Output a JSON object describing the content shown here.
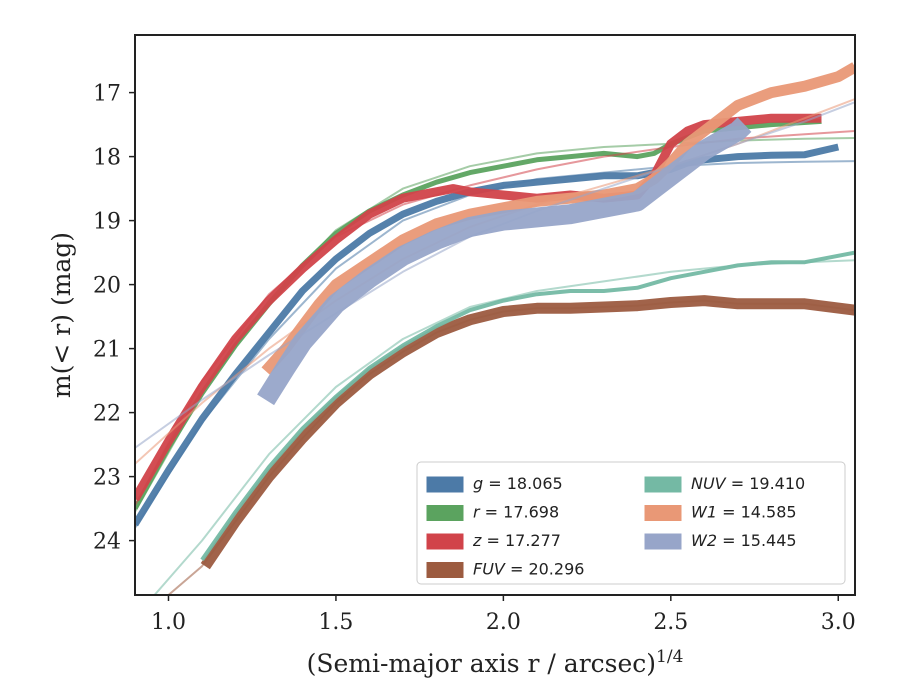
{
  "chart_data": {
    "type": "line",
    "xlabel": "(Semi-major axis r / arcsec)",
    "xlabel_sup": "1/4",
    "ylabel": "m(< r) (mag)",
    "xlim": [
      0.9,
      3.05
    ],
    "ylim": [
      24.85,
      16.1
    ],
    "y_inverted": true,
    "x_ticks": [
      1.0,
      1.5,
      2.0,
      2.5,
      3.0
    ],
    "x_tick_labels": [
      "1.0",
      "1.5",
      "2.0",
      "2.5",
      "3.0"
    ],
    "y_ticks": [
      17,
      18,
      19,
      20,
      21,
      22,
      23,
      24
    ],
    "y_tick_labels": [
      "17",
      "18",
      "19",
      "20",
      "21",
      "22",
      "23",
      "24"
    ],
    "grid": false,
    "legend_position": "lower-right",
    "series": [
      {
        "name": "g = 18.065",
        "label_var": "g",
        "label_value": "18.065",
        "color": "#4c7aa7",
        "band": 7,
        "x": [
          0.9,
          1.0,
          1.1,
          1.2,
          1.3,
          1.4,
          1.5,
          1.6,
          1.7,
          1.8,
          1.9,
          2.0,
          2.1,
          2.2,
          2.3,
          2.4,
          2.45,
          2.5,
          2.55,
          2.6,
          2.7,
          2.8,
          2.9,
          3.0
        ],
        "y": [
          23.75,
          22.9,
          22.1,
          21.4,
          20.75,
          20.1,
          19.6,
          19.2,
          18.9,
          18.7,
          18.55,
          18.45,
          18.4,
          18.35,
          18.3,
          18.3,
          18.25,
          18.2,
          18.1,
          18.05,
          18.0,
          17.98,
          17.97,
          17.85
        ],
        "model_x": [
          0.9,
          1.1,
          1.3,
          1.5,
          1.7,
          1.9,
          2.1,
          2.3,
          2.5,
          2.7,
          2.9,
          3.05
        ],
        "model_y": [
          23.8,
          22.15,
          20.85,
          19.75,
          19.0,
          18.6,
          18.35,
          18.25,
          18.15,
          18.1,
          18.08,
          18.07
        ]
      },
      {
        "name": "r = 17.698",
        "label_var": "r",
        "label_value": "17.698",
        "color": "#5ba35f",
        "band": 5,
        "x": [
          0.9,
          1.0,
          1.1,
          1.2,
          1.3,
          1.4,
          1.5,
          1.6,
          1.7,
          1.8,
          1.9,
          2.0,
          2.1,
          2.2,
          2.3,
          2.4,
          2.45,
          2.5,
          2.6,
          2.7,
          2.8,
          2.95
        ],
        "y": [
          23.5,
          22.55,
          21.7,
          20.95,
          20.3,
          19.7,
          19.2,
          18.85,
          18.6,
          18.4,
          18.25,
          18.15,
          18.05,
          18.0,
          17.95,
          18.0,
          17.95,
          17.8,
          17.6,
          17.55,
          17.5,
          17.45
        ],
        "model_x": [
          0.9,
          1.1,
          1.3,
          1.5,
          1.7,
          1.9,
          2.1,
          2.3,
          2.5,
          2.7,
          2.9,
          3.05
        ],
        "model_y": [
          23.55,
          21.7,
          20.25,
          19.15,
          18.5,
          18.15,
          17.95,
          17.85,
          17.8,
          17.75,
          17.72,
          17.71
        ]
      },
      {
        "name": "z = 17.277",
        "label_var": "z",
        "label_value": "17.277",
        "color": "#d1434a",
        "band": 9,
        "x": [
          0.9,
          1.0,
          1.1,
          1.2,
          1.3,
          1.4,
          1.5,
          1.6,
          1.7,
          1.8,
          1.85,
          1.9,
          2.0,
          2.1,
          2.2,
          2.3,
          2.4,
          2.45,
          2.5,
          2.55,
          2.6,
          2.7,
          2.8,
          2.95
        ],
        "y": [
          23.35,
          22.45,
          21.6,
          20.85,
          20.25,
          19.75,
          19.3,
          18.9,
          18.65,
          18.55,
          18.5,
          18.55,
          18.6,
          18.65,
          18.6,
          18.65,
          18.6,
          18.3,
          17.8,
          17.6,
          17.5,
          17.45,
          17.4,
          17.4
        ],
        "model_x": [
          0.9,
          1.1,
          1.3,
          1.5,
          1.7,
          1.9,
          2.1,
          2.3,
          2.5,
          2.7,
          2.9,
          3.05
        ],
        "model_y": [
          23.45,
          21.5,
          20.15,
          19.25,
          18.75,
          18.45,
          18.2,
          18.0,
          17.85,
          17.72,
          17.65,
          17.6
        ]
      },
      {
        "name": "FUV = 20.296",
        "label_var": "FUV",
        "label_value": "20.296",
        "color": "#9c5b40",
        "band": 11,
        "x": [
          1.11,
          1.2,
          1.3,
          1.4,
          1.5,
          1.6,
          1.7,
          1.8,
          1.9,
          2.0,
          2.1,
          2.2,
          2.3,
          2.4,
          2.5,
          2.6,
          2.7,
          2.8,
          2.9,
          3.05
        ],
        "y": [
          24.4,
          23.7,
          23.0,
          22.4,
          21.85,
          21.4,
          21.05,
          20.75,
          20.55,
          20.42,
          20.37,
          20.37,
          20.35,
          20.33,
          20.28,
          20.25,
          20.3,
          20.3,
          20.3,
          20.4
        ],
        "model_x": [
          0.9,
          1.0,
          1.1,
          1.2,
          1.3,
          1.4,
          1.5,
          1.6,
          1.7,
          1.8,
          1.9,
          2.0,
          2.1,
          2.2,
          2.3,
          2.4,
          2.5,
          2.6,
          2.7,
          2.8,
          2.9,
          3.05
        ],
        "model_y": [
          25.2,
          24.85,
          24.4,
          23.7,
          23.0,
          22.4,
          21.85,
          21.4,
          21.05,
          20.75,
          20.55,
          20.42,
          20.37,
          20.37,
          20.35,
          20.33,
          20.28,
          20.25,
          20.3,
          20.3,
          20.3,
          20.4
        ]
      },
      {
        "name": "NUV = 19.410",
        "label_var": "NUV",
        "label_value": "19.410",
        "color": "#74b9a4",
        "band": 4,
        "x": [
          1.1,
          1.2,
          1.3,
          1.4,
          1.5,
          1.6,
          1.7,
          1.8,
          1.9,
          2.0,
          2.1,
          2.2,
          2.3,
          2.4,
          2.5,
          2.6,
          2.7,
          2.8,
          2.9,
          3.05
        ],
        "y": [
          24.3,
          23.55,
          22.85,
          22.25,
          21.75,
          21.3,
          20.95,
          20.65,
          20.4,
          20.25,
          20.15,
          20.1,
          20.1,
          20.05,
          19.9,
          19.8,
          19.7,
          19.65,
          19.65,
          19.5
        ],
        "model_x": [
          0.9,
          1.1,
          1.3,
          1.5,
          1.7,
          1.9,
          2.1,
          2.3,
          2.5,
          2.7,
          2.9,
          3.05
        ],
        "model_y": [
          25.2,
          24.0,
          22.65,
          21.6,
          20.85,
          20.35,
          20.1,
          19.95,
          19.8,
          19.7,
          19.65,
          19.62
        ]
      },
      {
        "name": "W1 = 14.585",
        "label_var": "W1",
        "label_value": "14.585",
        "color": "#e99876",
        "band": 11,
        "x": [
          1.29,
          1.35,
          1.4,
          1.45,
          1.5,
          1.6,
          1.7,
          1.8,
          1.9,
          2.0,
          2.1,
          2.2,
          2.3,
          2.4,
          2.45,
          2.5,
          2.55,
          2.6,
          2.65,
          2.7,
          2.75,
          2.8,
          2.9,
          3.0,
          3.05
        ],
        "y": [
          21.35,
          21.0,
          20.65,
          20.3,
          20.0,
          19.65,
          19.3,
          19.05,
          18.9,
          18.8,
          18.7,
          18.65,
          18.6,
          18.5,
          18.35,
          18.1,
          17.8,
          17.6,
          17.4,
          17.2,
          17.1,
          17.0,
          16.9,
          16.75,
          16.6
        ],
        "model_x": [
          0.9,
          1.1,
          1.3,
          1.5,
          1.7,
          1.9,
          2.1,
          2.3,
          2.5,
          2.7,
          2.9,
          3.05
        ],
        "model_y": [
          22.8,
          21.85,
          21.0,
          20.25,
          19.6,
          19.1,
          18.75,
          18.45,
          18.15,
          17.8,
          17.4,
          17.1
        ]
      },
      {
        "name": "W2 = 15.445",
        "label_var": "W2",
        "label_value": "15.445",
        "color": "#97a5c9",
        "band": 20,
        "x": [
          1.29,
          1.35,
          1.4,
          1.45,
          1.5,
          1.6,
          1.7,
          1.8,
          1.9,
          2.0,
          2.1,
          2.2,
          2.3,
          2.4,
          2.45,
          2.5,
          2.55,
          2.6,
          2.65,
          2.7,
          2.72
        ],
        "y": [
          21.8,
          21.3,
          20.9,
          20.6,
          20.3,
          19.9,
          19.55,
          19.3,
          19.1,
          19.0,
          18.95,
          18.9,
          18.8,
          18.7,
          18.5,
          18.3,
          18.1,
          17.9,
          17.75,
          17.6,
          17.5
        ],
        "model_x": [
          0.9,
          1.1,
          1.3,
          1.5,
          1.7,
          1.9,
          2.1,
          2.3,
          2.5,
          2.7,
          2.9,
          3.05
        ],
        "model_y": [
          22.55,
          21.8,
          21.1,
          20.45,
          19.8,
          19.25,
          18.85,
          18.5,
          18.15,
          17.8,
          17.45,
          17.15
        ]
      }
    ]
  }
}
